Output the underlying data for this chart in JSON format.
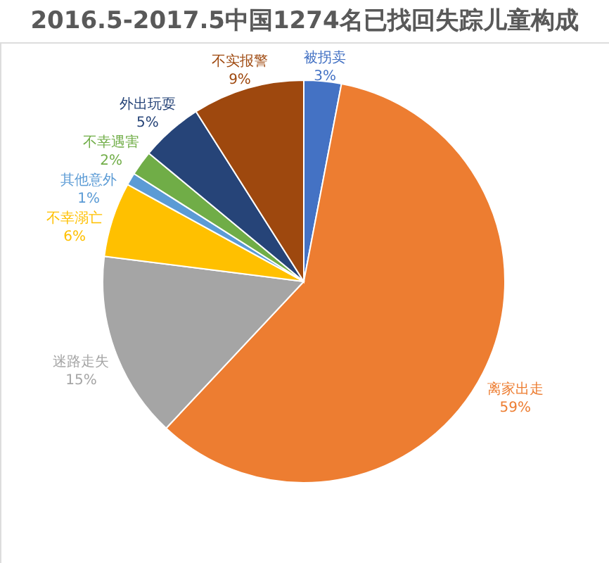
{
  "chart_data": {
    "type": "pie",
    "title": "2016.5-2017.5中国1274名已找回失踪儿童构成",
    "categories": [
      "被拐卖",
      "离家出走",
      "迷路走失",
      "不幸溺亡",
      "其他意外",
      "不幸遇害",
      "外出玩耍",
      "不实报警"
    ],
    "values": [
      3,
      59,
      15,
      6,
      1,
      2,
      5,
      9
    ],
    "colors": [
      "#4472c4",
      "#ed7d31",
      "#a5a5a5",
      "#ffc000",
      "#5b9bd5",
      "#70ad47",
      "#264478",
      "#9e480e"
    ],
    "value_labels": [
      "3%",
      "59%",
      "15%",
      "6%",
      "1%",
      "2%",
      "5%",
      "9%"
    ]
  }
}
